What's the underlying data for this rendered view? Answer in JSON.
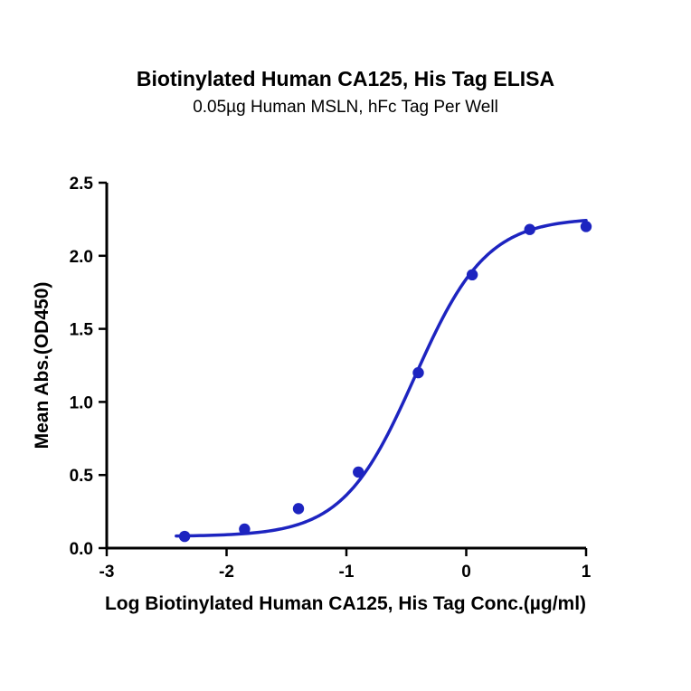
{
  "chart_data": {
    "type": "scatter",
    "title": "Biotinylated Human CA125, His Tag ELISA",
    "subtitle": "0.05µg Human MSLN, hFc Tag Per Well",
    "xlabel": "Log Biotinylated Human CA125, His Tag Conc.(µg/ml)",
    "ylabel": "Mean Abs.(OD450)",
    "xlim": [
      -3,
      1
    ],
    "ylim": [
      0,
      2.5
    ],
    "x_tick_values": [
      -3,
      -2,
      -1,
      0,
      1
    ],
    "x_tick_labels": [
      "-3",
      "-2",
      "-1",
      "0",
      "1"
    ],
    "y_tick_values": [
      0,
      0.5,
      1,
      1.5,
      2,
      2.5
    ],
    "y_tick_labels": [
      "0.0",
      "0.5",
      "1.0",
      "1.5",
      "2.0",
      "2.5"
    ],
    "grid": false,
    "legend": "none",
    "axis_color": "#000000",
    "series": [
      {
        "name": "Biotinylated Human CA125, His Tag",
        "color": "#1d24c0",
        "points": [
          {
            "x": -2.35,
            "y": 0.08
          },
          {
            "x": -1.85,
            "y": 0.13
          },
          {
            "x": -1.4,
            "y": 0.27
          },
          {
            "x": -0.9,
            "y": 0.52
          },
          {
            "x": -0.4,
            "y": 1.2
          },
          {
            "x": 0.05,
            "y": 1.87
          },
          {
            "x": 0.53,
            "y": 2.18
          },
          {
            "x": 1.0,
            "y": 2.2
          }
        ],
        "fit": {
          "model": "4PL",
          "bottom": 0.08,
          "top": 2.26,
          "logEC50": -0.43,
          "hillslope": 1.45,
          "x_range": [
            -2.42,
            1.0
          ]
        }
      }
    ]
  }
}
